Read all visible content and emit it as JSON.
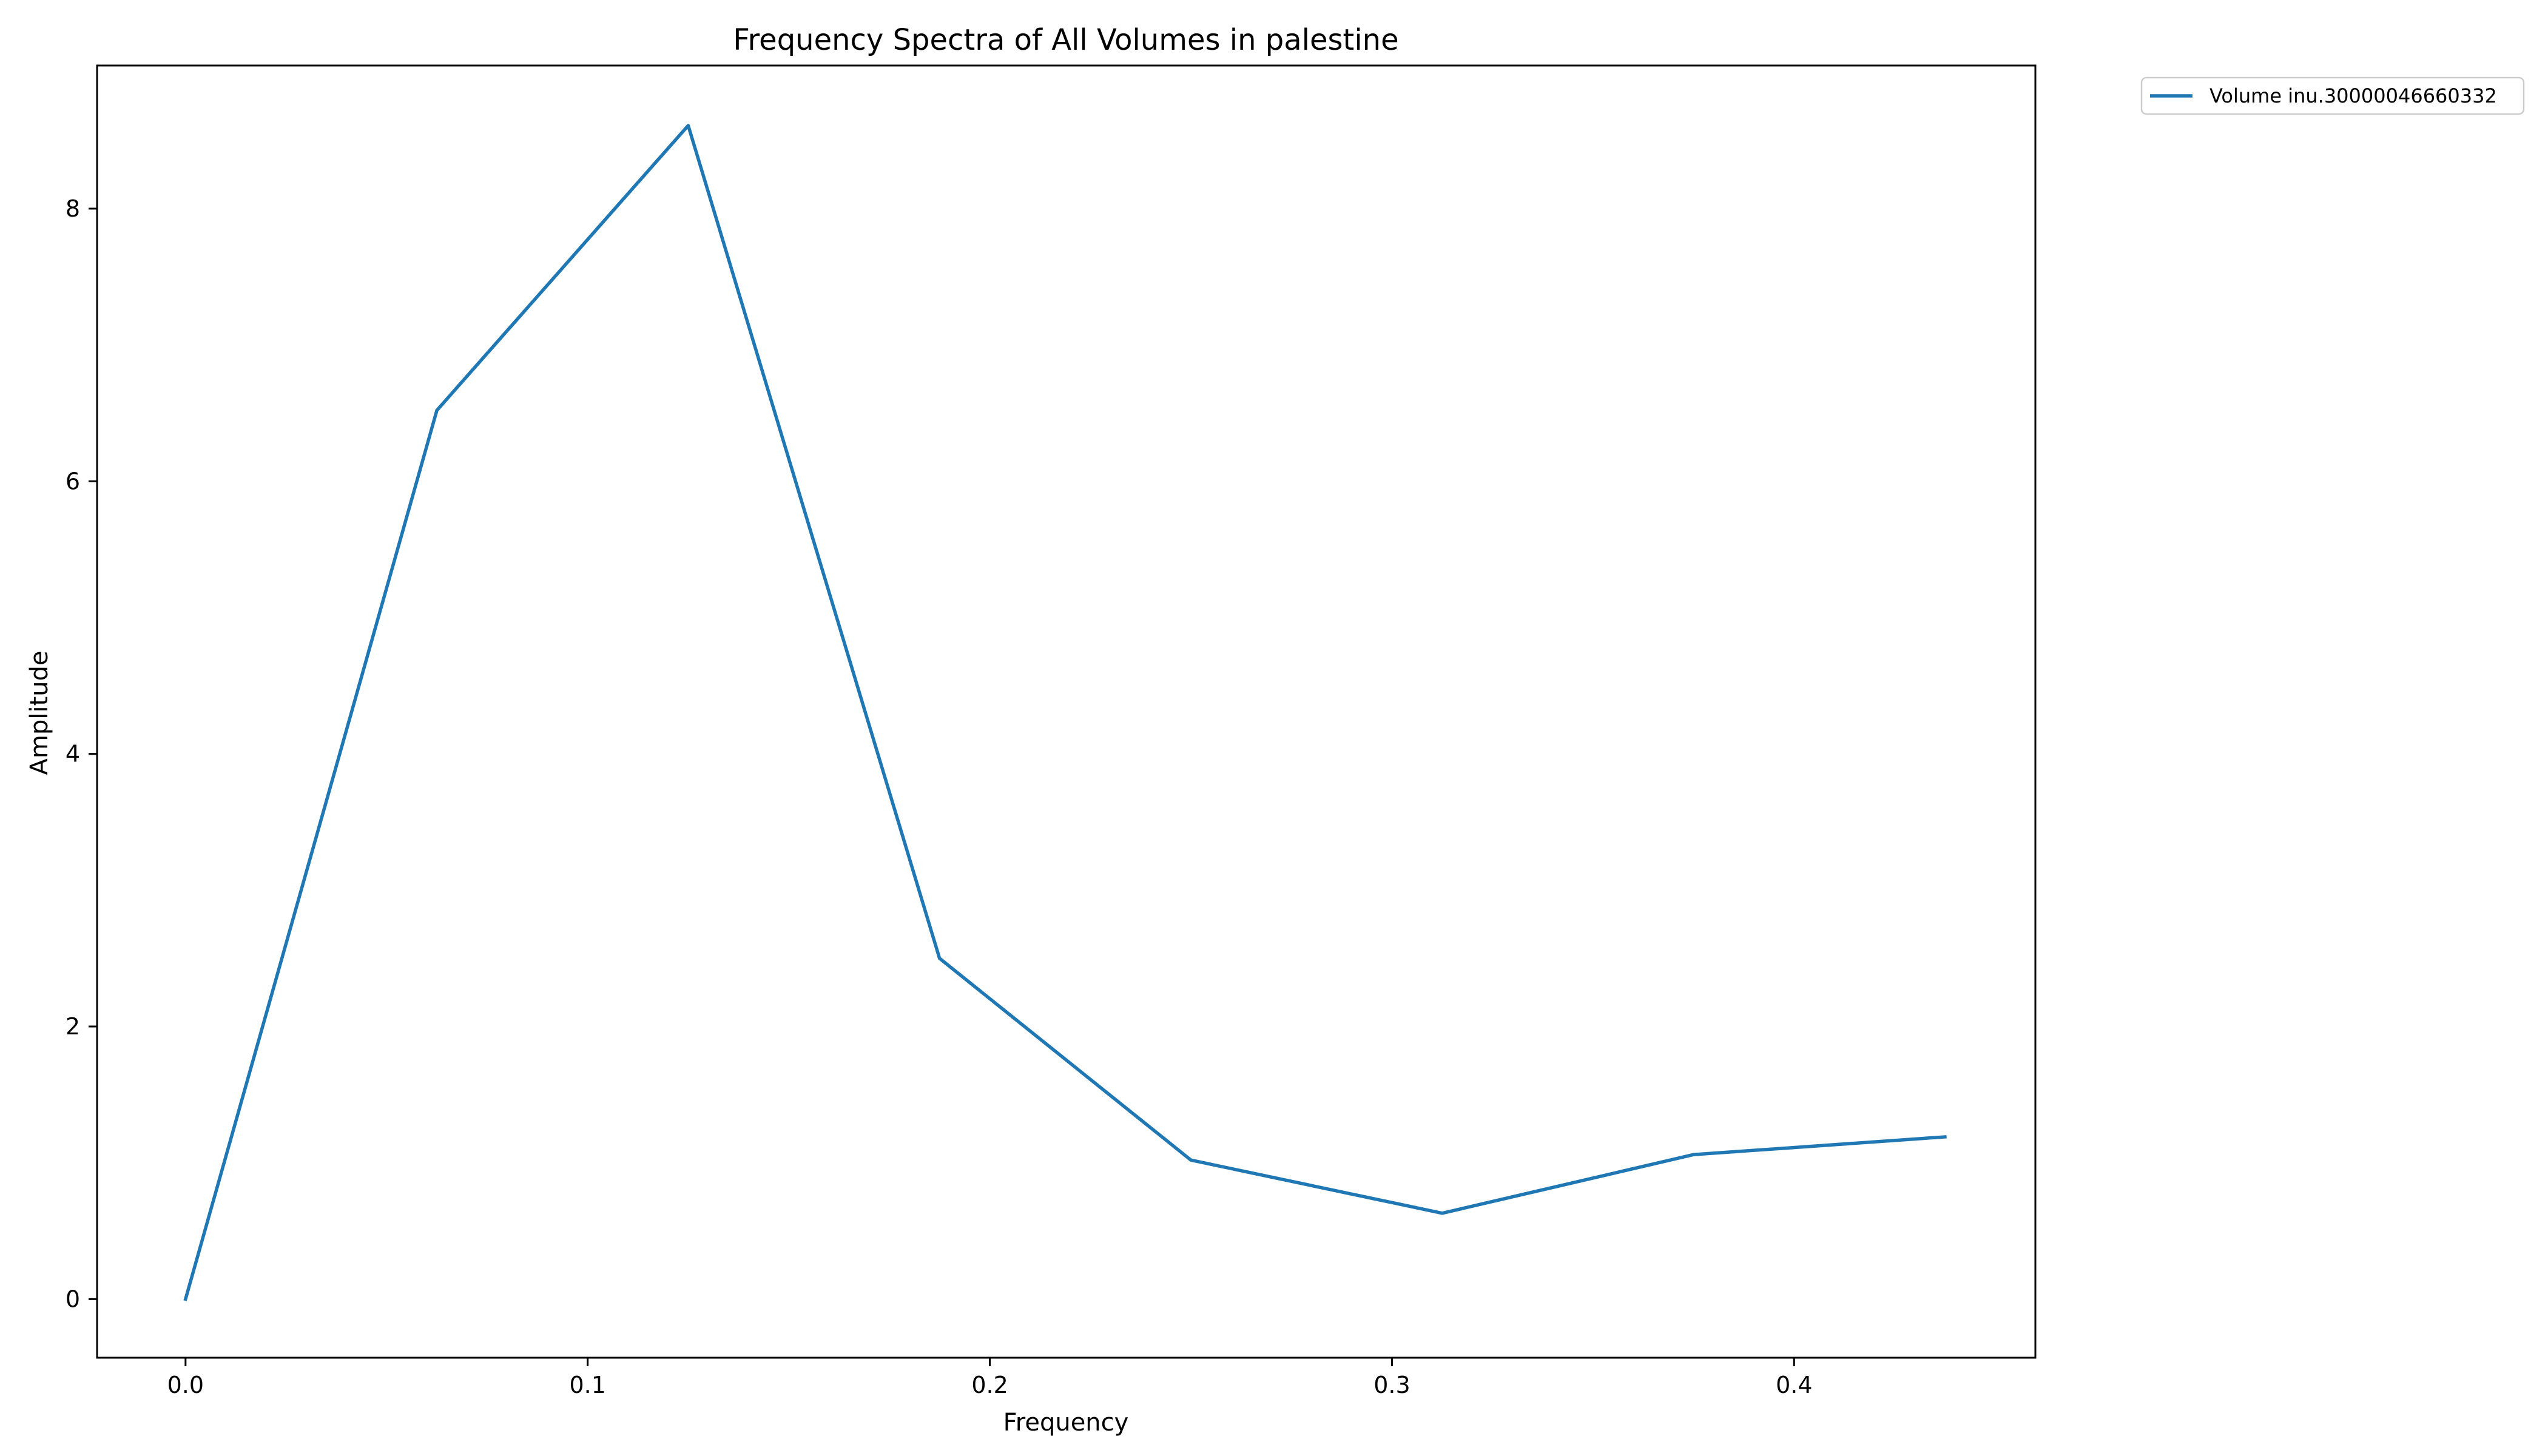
{
  "chart_data": {
    "type": "line",
    "title": "Frequency Spectra of All Volumes in palestine",
    "xlabel": "Frequency",
    "ylabel": "Amplitude",
    "xlim": [
      -0.022,
      0.46
    ],
    "ylim": [
      -0.43,
      9.05
    ],
    "xticks": [
      0.0,
      0.1,
      0.2,
      0.3,
      0.4
    ],
    "xtick_labels": [
      "0.0",
      "0.1",
      "0.2",
      "0.3",
      "0.4"
    ],
    "yticks": [
      0,
      2,
      4,
      6,
      8
    ],
    "ytick_labels": [
      "0",
      "2",
      "4",
      "6",
      "8"
    ],
    "grid": false,
    "legend_position": "outside-top-right",
    "series": [
      {
        "name": "Volume inu.30000046660332",
        "color": "#1f77b4",
        "x": [
          0.0,
          0.0625,
          0.125,
          0.1875,
          0.25,
          0.3125,
          0.375,
          0.4375
        ],
        "y": [
          0.0,
          6.52,
          8.61,
          2.5,
          1.02,
          0.63,
          1.06,
          1.19
        ]
      }
    ]
  }
}
